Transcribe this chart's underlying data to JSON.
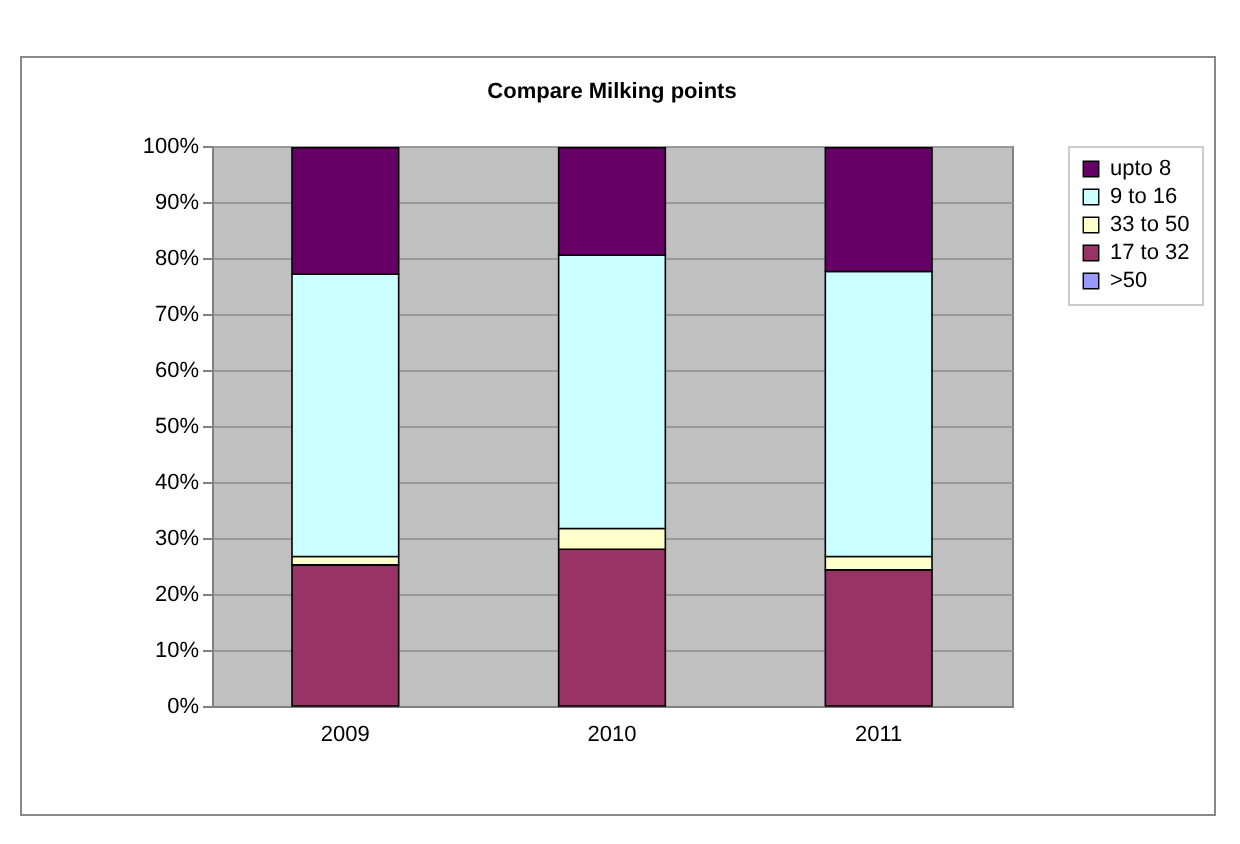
{
  "chart_data": {
    "type": "bar",
    "title": "Compare Milking points",
    "stacked": true,
    "categories": [
      "2009",
      "2010",
      "2011"
    ],
    "series": [
      {
        "name": ">50",
        "color": "#9999ff",
        "values": [
          null,
          null,
          null
        ]
      },
      {
        "name": "17 to 32",
        "color": "#993366",
        "values": [
          25.2,
          28.0,
          24.3
        ]
      },
      {
        "name": "33 to 50",
        "color": "#ffffcc",
        "values": [
          1.5,
          3.7,
          2.4
        ]
      },
      {
        "name": "9 to 16",
        "color": "#ccffff",
        "values": [
          50.4,
          48.8,
          50.9
        ]
      },
      {
        "name": "upto 8",
        "color": "#660066",
        "values": [
          22.6,
          19.2,
          22.1
        ]
      }
    ],
    "ylim": [
      0,
      100
    ],
    "yticks": [
      {
        "value": 0,
        "label": "0%"
      },
      {
        "value": 10,
        "label": "10%"
      },
      {
        "value": 20,
        "label": "20%"
      },
      {
        "value": 30,
        "label": "30%"
      },
      {
        "value": 40,
        "label": "40%"
      },
      {
        "value": 50,
        "label": "50%"
      },
      {
        "value": 60,
        "label": "60%"
      },
      {
        "value": 70,
        "label": "70%"
      },
      {
        "value": 80,
        "label": "80%"
      },
      {
        "value": 90,
        "label": "90%"
      },
      {
        "value": 100,
        "label": "100%"
      }
    ],
    "grid": "y",
    "legend": "right"
  }
}
